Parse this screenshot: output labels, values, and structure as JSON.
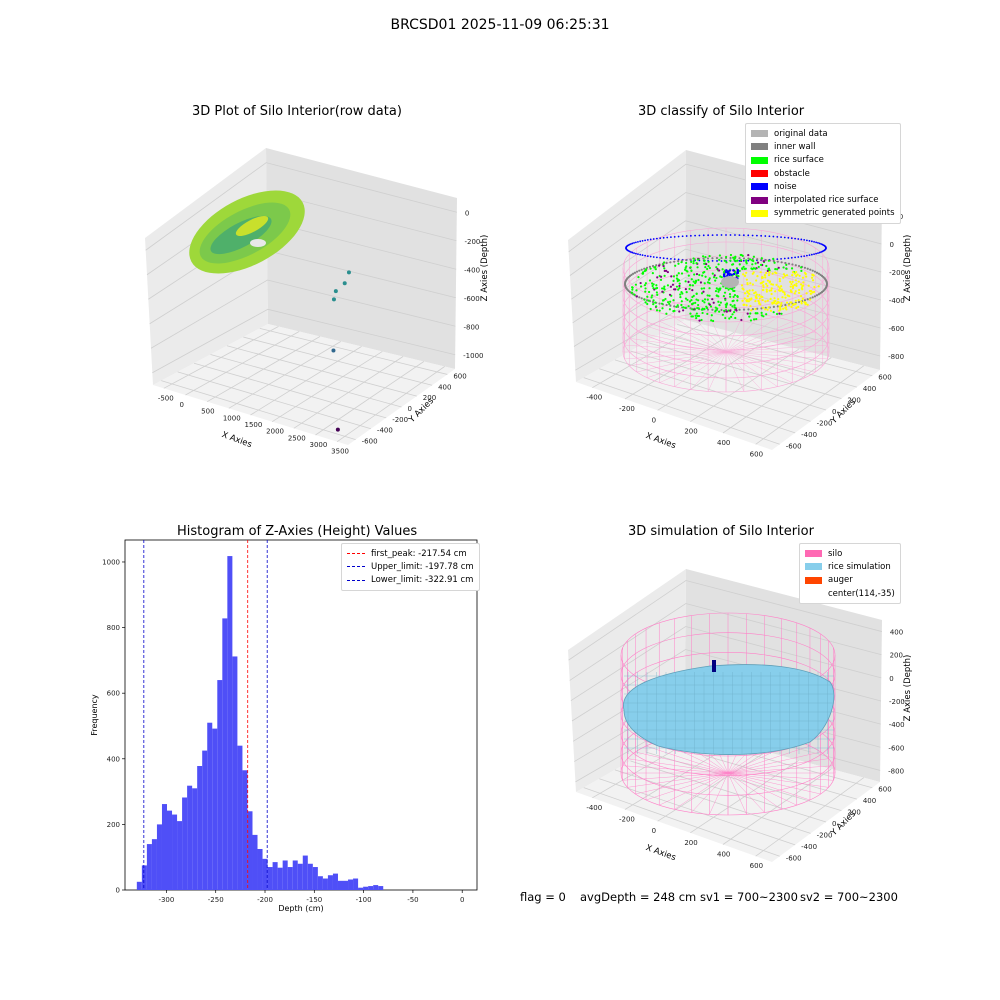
{
  "figure_title": "BRCSD01 2025-11-09 06:25:31",
  "footer": {
    "flag": "flag = 0",
    "avg_depth": "avgDepth = 248 cm",
    "sv1": "sv1 = 700~2300",
    "sv2": "sv2 = 700~2300"
  },
  "chart_data": [
    {
      "type": "scatter",
      "projection": "3d",
      "title": "3D Plot of Silo Interior(row data)",
      "xlabel": "X Axies",
      "ylabel": "Y Axies",
      "zlabel": "Z Axies (Depth)",
      "x_ticks": [
        "-500",
        "0",
        "500",
        "1000",
        "1500",
        "2000",
        "2500",
        "3000",
        "3500"
      ],
      "y_ticks": [
        "-600",
        "-400",
        "-200",
        "0",
        "200",
        "400",
        "600"
      ],
      "z_ticks": [
        "0",
        "-200",
        "-400",
        "-600",
        "-800",
        "-1000"
      ],
      "xlim": [
        -600,
        3500
      ],
      "ylim": [
        -650,
        650
      ],
      "zlim": [
        -1050,
        0
      ],
      "outlier_points": [
        {
          "x": 2100,
          "y": 150,
          "z": -380,
          "color": "#2a8e8e"
        },
        {
          "x": 2100,
          "y": 100,
          "z": -430,
          "color": "#2a8e8e"
        },
        {
          "x": 2000,
          "y": 50,
          "z": -470,
          "color": "#2a8e8e"
        },
        {
          "x": 2050,
          "y": 0,
          "z": -500,
          "color": "#2a8e8e"
        },
        {
          "x": 2400,
          "y": -200,
          "z": -720,
          "color": "#31688e"
        },
        {
          "x": 3200,
          "y": -600,
          "z": -1000,
          "color": "#440154"
        }
      ],
      "grid": true
    },
    {
      "type": "scatter",
      "projection": "3d",
      "title": "3D classify of Silo Interior",
      "xlabel": "X Axies",
      "ylabel": "Y Axies",
      "zlabel": "Z Axies (Depth)",
      "x_ticks": [
        "-400",
        "-200",
        "0",
        "200",
        "400",
        "600"
      ],
      "y_ticks": [
        "-600",
        "-400",
        "-200",
        "0",
        "200",
        "400",
        "600"
      ],
      "z_ticks": [
        "200",
        "0",
        "-200",
        "-400",
        "-600",
        "-800"
      ],
      "legend": [
        {
          "label": "original data",
          "color": "#b4b4b4"
        },
        {
          "label": "inner wall",
          "color": "#808080"
        },
        {
          "label": "rice surface",
          "color": "#00ff00"
        },
        {
          "label": "obstacle",
          "color": "#ff0000"
        },
        {
          "label": "noise",
          "color": "#0000ff"
        },
        {
          "label": "interpolated rice surface",
          "color": "#800080"
        },
        {
          "label": "symmetric generated points",
          "color": "#ffff00"
        }
      ],
      "legend_position": "top-right",
      "grid": true
    },
    {
      "type": "bar",
      "title": "Histogram of Z-Axies (Height) Values",
      "xlabel": "Depth (cm)",
      "ylabel": "Frequency",
      "bar_color": "#4f4ff7",
      "xlim": [
        -342,
        15
      ],
      "ylim": [
        0,
        1067
      ],
      "x_ticks": [
        -300,
        -250,
        -200,
        -150,
        -100,
        -50,
        0
      ],
      "y_ticks": [
        0,
        200,
        400,
        600,
        800,
        1000
      ],
      "bin_start": -330,
      "bin_width": 5.1,
      "values": [
        25,
        75,
        140,
        155,
        200,
        262,
        242,
        230,
        210,
        282,
        318,
        310,
        378,
        425,
        510,
        492,
        640,
        828,
        1018,
        712,
        440,
        365,
        240,
        168,
        125,
        95,
        70,
        85,
        68,
        90,
        70,
        90,
        80,
        105,
        80,
        70,
        42,
        35,
        45,
        50,
        28,
        28,
        32,
        35,
        7,
        10,
        12,
        15,
        12
      ],
      "vlines": [
        {
          "x": -217.54,
          "color": "#ff0000",
          "label": "first_peak: -217.54 cm"
        },
        {
          "x": -197.78,
          "color": "#0000cc",
          "label": "Upper_limit: -197.78 cm"
        },
        {
          "x": -322.91,
          "color": "#0000cc",
          "label": "Lower_limit: -322.91 cm"
        }
      ],
      "legend_position": "top-right"
    },
    {
      "type": "surface",
      "projection": "3d",
      "title": "3D simulation of Silo Interior",
      "xlabel": "X Axies",
      "ylabel": "Y Axies",
      "zlabel": "Z Axies (Depth)",
      "x_ticks": [
        "-400",
        "-200",
        "0",
        "200",
        "400",
        "600"
      ],
      "y_ticks": [
        "-600",
        "-400",
        "-200",
        "0",
        "200",
        "400",
        "600"
      ],
      "z_ticks": [
        "400",
        "200",
        "0",
        "-200",
        "-400",
        "-600",
        "-800"
      ],
      "legend": [
        {
          "label": "silo",
          "color": "#ff69b4"
        },
        {
          "label": "rice simulation",
          "color": "#87ceeb"
        },
        {
          "label": "auger",
          "color": "#ff4500"
        },
        {
          "label": "center(114,-35)",
          "color": ""
        }
      ],
      "legend_position": "top-right",
      "grid": true
    }
  ]
}
